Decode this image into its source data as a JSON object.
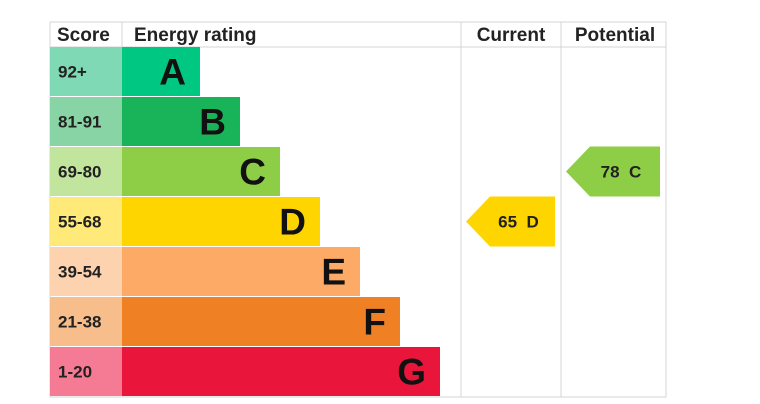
{
  "headers": {
    "score": "Score",
    "energy_rating": "Energy rating",
    "current": "Current",
    "potential": "Potential"
  },
  "chart_data": {
    "type": "bar",
    "bands": [
      {
        "score": "92+",
        "letter": "A",
        "band_color": "#00c781",
        "score_bg": "#7fd9b4"
      },
      {
        "score": "81-91",
        "letter": "B",
        "band_color": "#19b459",
        "score_bg": "#88d4a4"
      },
      {
        "score": "69-80",
        "letter": "C",
        "band_color": "#8dce46",
        "score_bg": "#c2e59e"
      },
      {
        "score": "55-68",
        "letter": "D",
        "band_color": "#ffd500",
        "score_bg": "#ffe979"
      },
      {
        "score": "39-54",
        "letter": "E",
        "band_color": "#fcaa65",
        "score_bg": "#fdd2ae"
      },
      {
        "score": "21-38",
        "letter": "F",
        "band_color": "#ef8023",
        "score_bg": "#f7bd8b"
      },
      {
        "score": "1-20",
        "letter": "G",
        "band_color": "#e9153b",
        "score_bg": "#f57a93"
      }
    ],
    "current": {
      "value": 65,
      "letter": "D",
      "label": "65  D",
      "color": "#ffd500"
    },
    "potential": {
      "value": 78,
      "letter": "C",
      "label": "78  C",
      "color": "#8dce46"
    }
  }
}
